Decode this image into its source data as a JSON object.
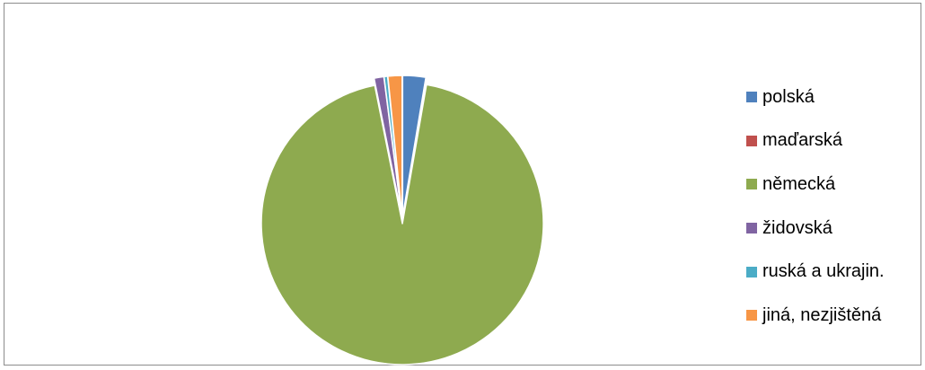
{
  "chart_data": {
    "type": "pie",
    "exploded": true,
    "series": [
      {
        "name": "polská",
        "value": 2.6,
        "color": "#4f81bd"
      },
      {
        "name": "maďarská",
        "value": 0.1,
        "color": "#c0504d"
      },
      {
        "name": "německá",
        "value": 92.8,
        "color": "#8eaa4f"
      },
      {
        "name": "židovská",
        "value": 1.1,
        "color": "#8064a2"
      },
      {
        "name": "ruská a ukrajin.",
        "value": 0.4,
        "color": "#4bacc6"
      },
      {
        "name": "jiná, nezjištěná",
        "value": 1.6,
        "color": "#f79646"
      }
    ],
    "legend_position": "right"
  }
}
